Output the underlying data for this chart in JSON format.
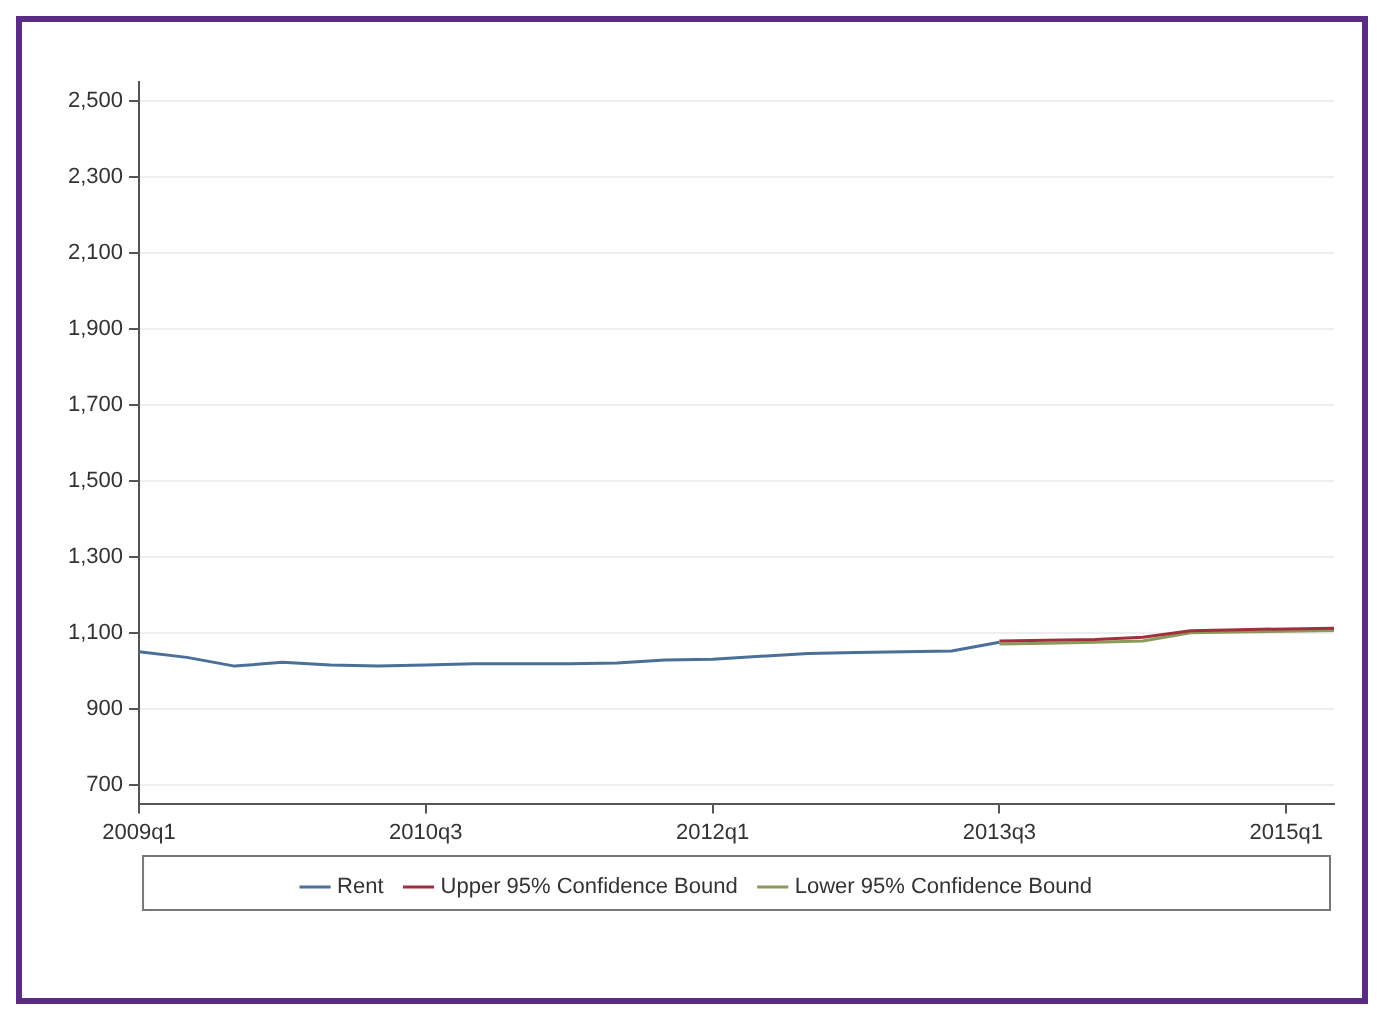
{
  "chart_data": {
    "type": "line",
    "categories": [
      "2009q1",
      null,
      null,
      null,
      null,
      null,
      "2010q3",
      null,
      null,
      null,
      null,
      null,
      "2012q1",
      null,
      null,
      null,
      null,
      null,
      "2013q3",
      null,
      null,
      null,
      null,
      null,
      "2015q1",
      null
    ],
    "series": [
      {
        "name": "Rent",
        "color": "#4a6f99",
        "values": [
          1050,
          1035,
          1012,
          1022,
          1015,
          1012,
          1015,
          1018,
          1018,
          1018,
          1020,
          1028,
          1030,
          1038,
          1045,
          1048,
          1050,
          1052,
          1075,
          null,
          null,
          null,
          null,
          null,
          null,
          null
        ]
      },
      {
        "name": "Upper 95% Confidence Bound",
        "color": "#a0303c",
        "values": [
          null,
          null,
          null,
          null,
          null,
          null,
          null,
          null,
          null,
          null,
          null,
          null,
          null,
          null,
          null,
          null,
          null,
          null,
          1078,
          1080,
          1082,
          1088,
          1105,
          1108,
          1110,
          1112
        ]
      },
      {
        "name": "Lower 95% Confidence Bound",
        "color": "#8a9a5b",
        "values": [
          null,
          null,
          null,
          null,
          null,
          null,
          null,
          null,
          null,
          null,
          null,
          null,
          null,
          null,
          null,
          null,
          null,
          null,
          1070,
          1072,
          1075,
          1078,
          1100,
          1102,
          1104,
          1106
        ]
      }
    ],
    "ylim": [
      650,
      2550
    ],
    "yticks": [
      700,
      900,
      {
        "value": 1100,
        "label": "1,100"
      },
      {
        "value": 1300,
        "label": "1,300"
      },
      {
        "value": 1500,
        "label": "1,500"
      },
      {
        "value": 1700,
        "label": "1,700"
      },
      {
        "value": 1900,
        "label": "1,900"
      },
      {
        "value": 2100,
        "label": "2,100"
      },
      {
        "value": 2300,
        "label": "2,300"
      },
      {
        "value": 2500,
        "label": "2,500"
      }
    ],
    "grid": "y",
    "legend": "bottom"
  }
}
